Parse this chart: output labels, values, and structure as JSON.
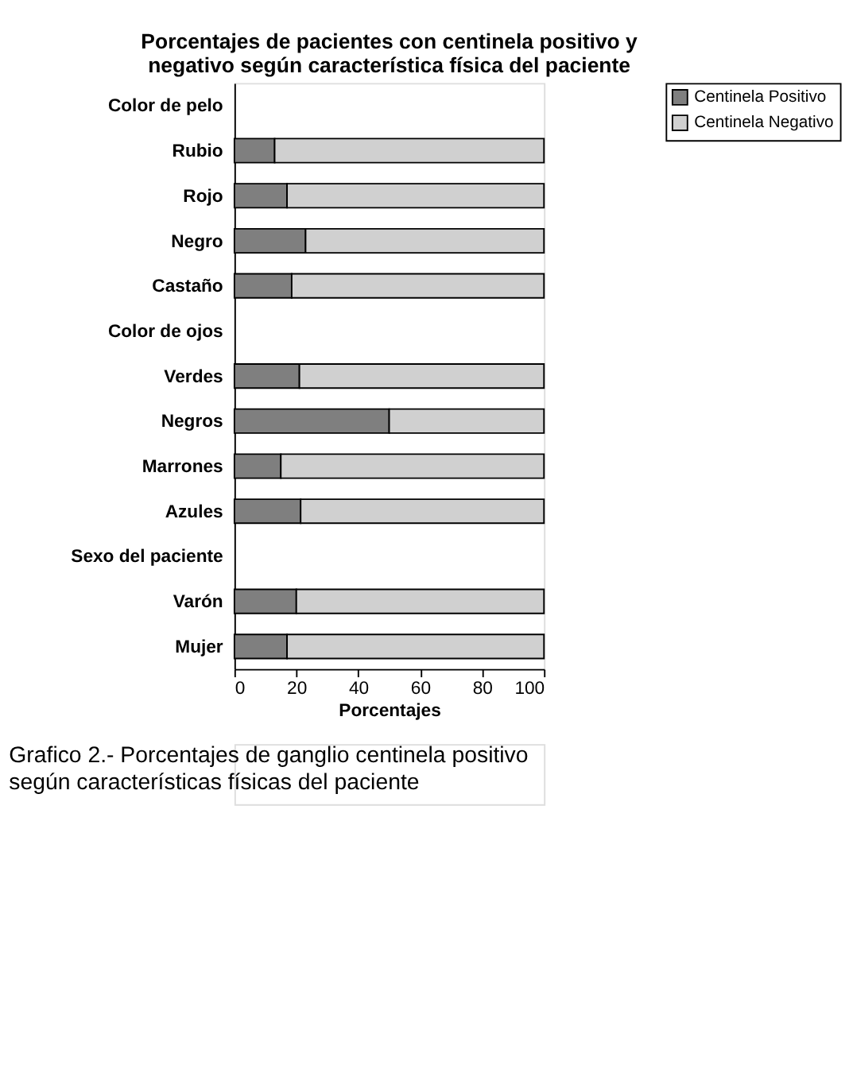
{
  "chart_data": {
    "type": "bar",
    "orientation": "horizontal",
    "stacked": true,
    "title": "Porcentajes de pacientes con centinela positivo y\nnegativo según característica física del paciente",
    "xlabel": "Porcentajes",
    "categories": [
      "Color de pelo",
      "Rubio",
      "Rojo",
      "Negro",
      "Castaño",
      "Color de ojos",
      "Verdes",
      "Negros",
      "Marrones",
      "Azules",
      "Sexo del paciente",
      "Varón",
      "Mujer"
    ],
    "series": [
      {
        "name": "Centinela Positivo",
        "color": "#7f7f7f",
        "values": [
          null,
          13,
          17,
          23,
          18.5,
          null,
          21,
          50,
          15,
          21.4,
          null,
          20,
          17
        ]
      },
      {
        "name": "Centinela Negativo",
        "color": "#d0d0d0",
        "values": [
          null,
          87,
          83,
          77,
          81.5,
          null,
          79,
          50,
          85,
          78.6,
          null,
          80,
          83
        ]
      }
    ],
    "xlim": [
      0,
      100
    ],
    "xticks": [
      0,
      20,
      40,
      60,
      80,
      100
    ],
    "grid": false,
    "legend": "top right",
    "annotations": [
      "Grafico 2.- Porcentajes de ganglio centinela positivo\nsegún características físicas del paciente"
    ]
  }
}
